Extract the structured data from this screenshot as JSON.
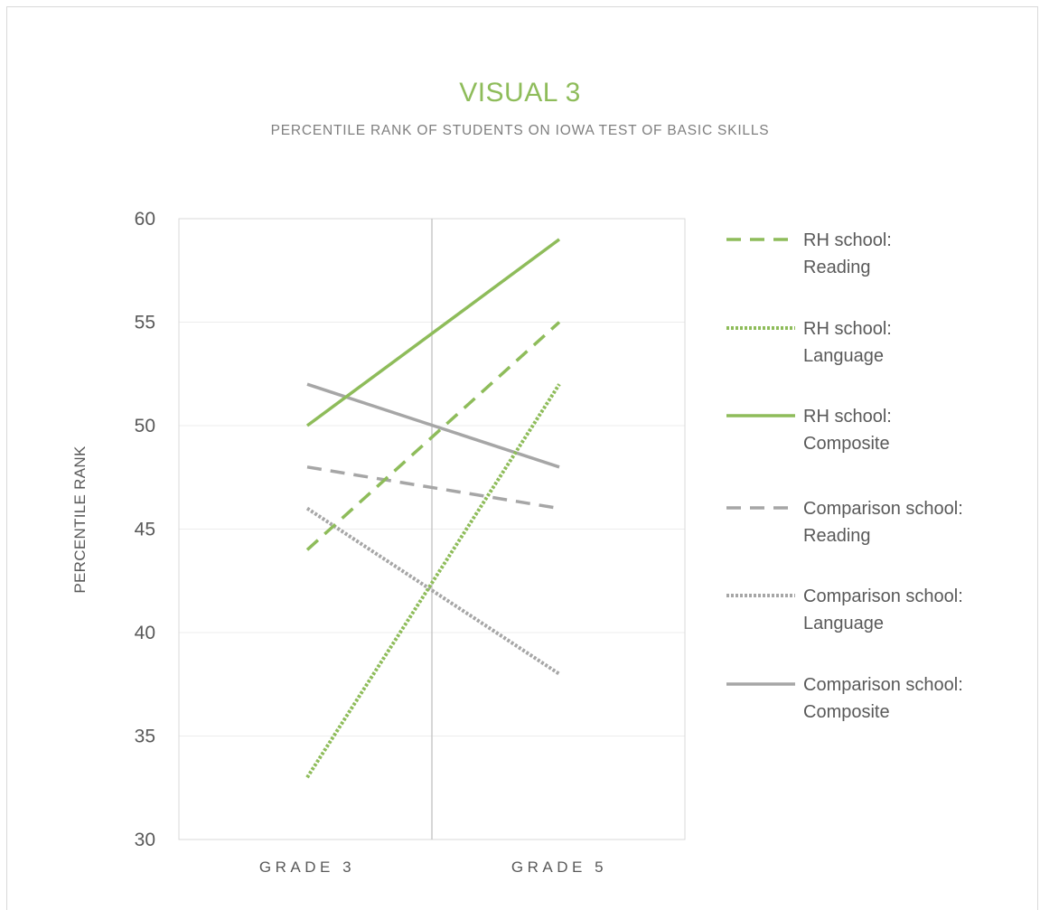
{
  "chart_data": {
    "type": "line",
    "title": "VISUAL 3",
    "subtitle": "PERCENTILE RANK OF STUDENTS ON IOWA TEST OF BASIC SKILLS",
    "xlabel": "",
    "ylabel": "PERCENTILE RANK",
    "categories": [
      "GRADE 3",
      "GRADE 5"
    ],
    "ylim": [
      30,
      60
    ],
    "yticks": [
      30,
      35,
      40,
      45,
      50,
      55,
      60
    ],
    "grid": true,
    "legend_position": "right",
    "series": [
      {
        "name": "RH school: Reading",
        "label_lines": [
          "RH school:",
          "Reading"
        ],
        "values": [
          44,
          55
        ],
        "color": "#8ebc5a",
        "style": "dashed"
      },
      {
        "name": "RH school: Language",
        "label_lines": [
          "RH school:",
          "Language"
        ],
        "values": [
          33,
          52
        ],
        "color": "#8ebc5a",
        "style": "dotted"
      },
      {
        "name": "RH school: Composite",
        "label_lines": [
          "RH school:",
          "Composite"
        ],
        "values": [
          50,
          59
        ],
        "color": "#8ebc5a",
        "style": "solid"
      },
      {
        "name": "Comparison school: Reading",
        "label_lines": [
          "Comparison school:",
          "Reading"
        ],
        "values": [
          48,
          46
        ],
        "color": "#a6a6a6",
        "style": "dashed"
      },
      {
        "name": "Comparison school: Language",
        "label_lines": [
          "Comparison school:",
          "Language"
        ],
        "values": [
          46,
          38
        ],
        "color": "#a6a6a6",
        "style": "dotted"
      },
      {
        "name": "Comparison school: Composite",
        "label_lines": [
          "Comparison school:",
          "Composite"
        ],
        "values": [
          52,
          48
        ],
        "color": "#a6a6a6",
        "style": "solid"
      }
    ]
  }
}
